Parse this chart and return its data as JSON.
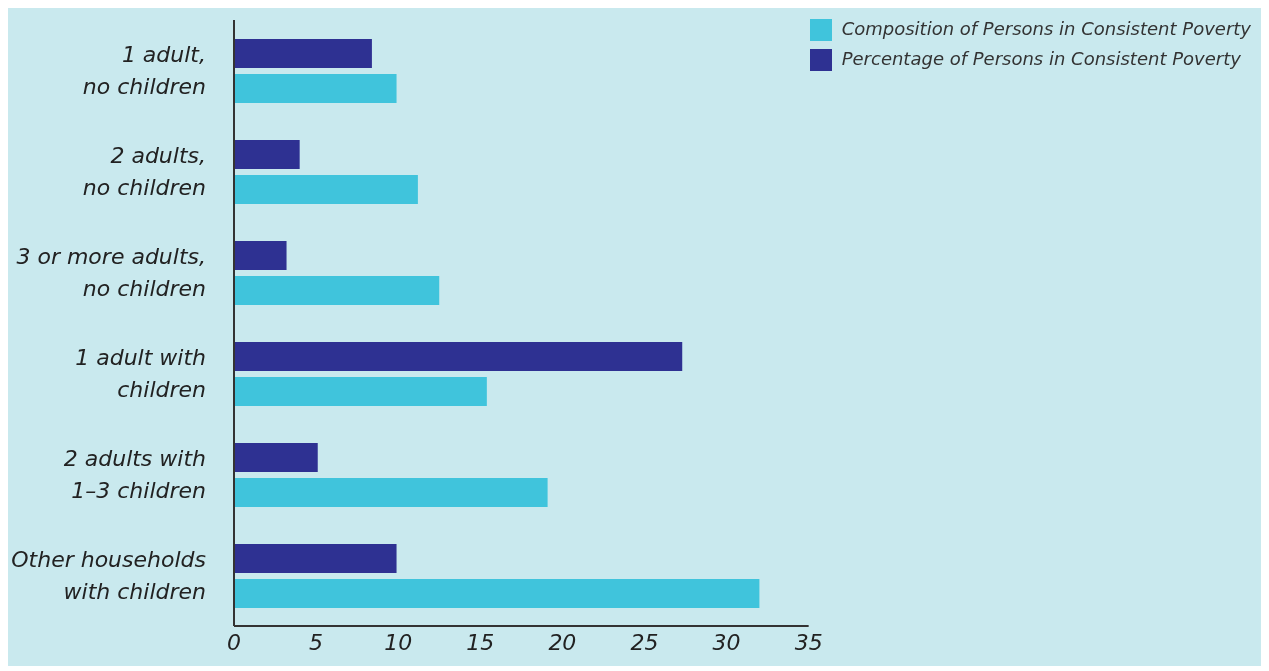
{
  "chart_data": {
    "type": "bar",
    "orientation": "horizontal",
    "categories": [
      "1 adult,\nno children",
      "2 adults,\nno children",
      "3 or more adults,\nno children",
      "1 adult with\nchildren",
      "2 adults with\n1–3 children",
      "Other households\nwith children"
    ],
    "series": [
      {
        "name": "Percentage of Persons in Consistent Poverty",
        "color": "#2e3192",
        "values": [
          8.4,
          4.0,
          3.2,
          27.3,
          5.1,
          9.9
        ]
      },
      {
        "name": "Composition of Persons in Consistent Poverty",
        "color": "#40c4dc",
        "values": [
          9.9,
          11.2,
          12.5,
          15.4,
          19.1,
          32.0
        ]
      }
    ],
    "xlim": [
      0,
      35
    ],
    "xticks": [
      0,
      5,
      10,
      15,
      20,
      25,
      30,
      35
    ],
    "grid": false,
    "legend": "top right"
  }
}
